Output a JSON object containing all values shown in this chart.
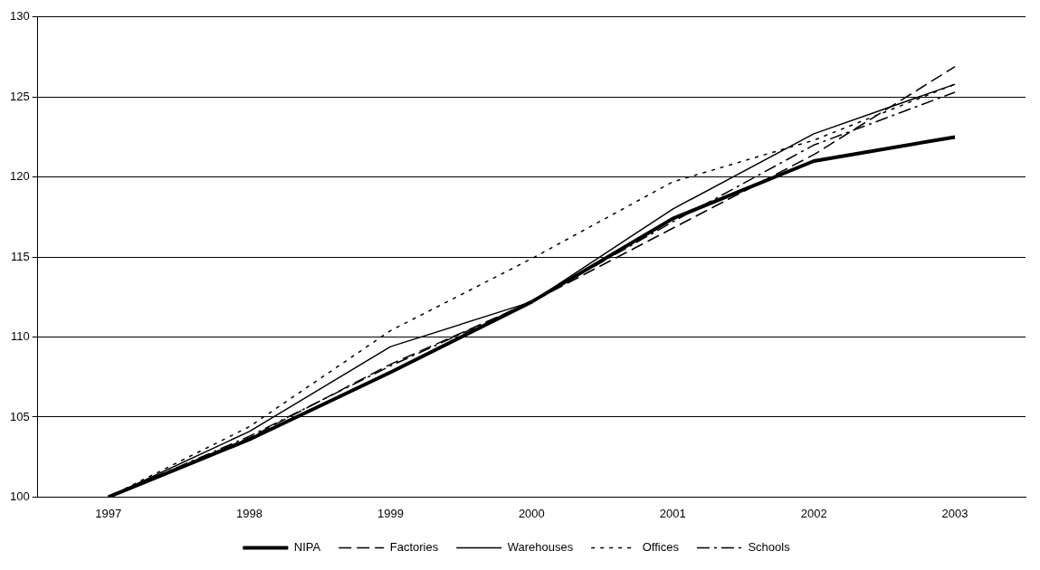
{
  "chart_data": {
    "type": "line",
    "categories": [
      "1997",
      "1998",
      "1999",
      "2000",
      "2001",
      "2002",
      "2003"
    ],
    "series": [
      {
        "name": "NIPA",
        "color": "#000000",
        "line_style": "solid",
        "values": [
          100,
          103.6,
          107.8,
          112.2,
          117.4,
          121,
          122.5
        ]
      },
      {
        "name": "Factories",
        "color": "#000000",
        "line_style": "dashed",
        "values": [
          100,
          103.7,
          108.3,
          112.2,
          116.8,
          121.4,
          126.9
        ]
      },
      {
        "name": "Warehouses",
        "color": "#000000",
        "line_style": "solid",
        "values": [
          100,
          104.1,
          109.4,
          112.2,
          118,
          122.7,
          125.8
        ]
      },
      {
        "name": "Offices",
        "color": "#000000",
        "line_style": "dotted",
        "values": [
          100,
          104.4,
          110.4,
          114.9,
          119.7,
          122.3,
          125.8
        ]
      },
      {
        "name": "Schools",
        "color": "#000000",
        "line_style": "dashdot",
        "values": [
          100,
          103.8,
          108.2,
          112.2,
          117.2,
          122,
          125.3
        ]
      }
    ],
    "ylim": [
      100,
      130
    ],
    "yticks": [
      100,
      105,
      110,
      115,
      120,
      125,
      130
    ],
    "grid": "y",
    "legend": "bottom",
    "marker": "none"
  }
}
